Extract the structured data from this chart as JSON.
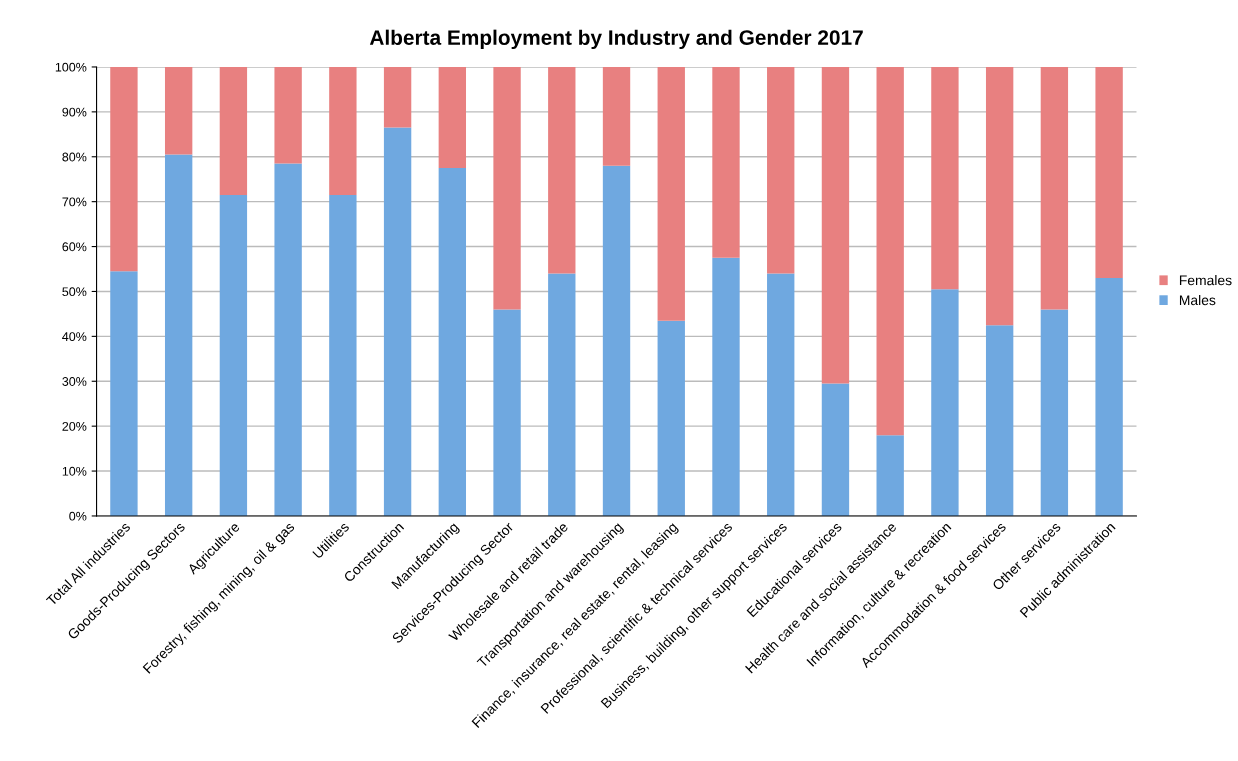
{
  "chart_data": {
    "type": "bar",
    "title": "Alberta Employment by Industry and Gender 2017",
    "categories": [
      "Total All industries",
      "Goods-Producing Sectors",
      "Agriculture",
      "Forestry, fishing, mining, oil & gas",
      "Utilities",
      "Construction",
      "Manufacturing",
      "Services-Producing Sector",
      "Wholesale and retail trade",
      "Transportation and warehousing",
      "Finance, insurance, real estate, rental, leasing",
      "Professional, scientific & technical services",
      "Business, building, other support services",
      "Educational services",
      "Health care and social assistance",
      "Information, culture & recreation",
      "Accommodation & food services",
      "Other services",
      "Public administration"
    ],
    "series": [
      {
        "name": "Males",
        "color": "#6fa8e0",
        "values": [
          54.5,
          80.5,
          71.5,
          78.5,
          71.5,
          86.5,
          77.5,
          46,
          54,
          78,
          43.5,
          57.5,
          54,
          29.5,
          18,
          50.5,
          42.5,
          46,
          53
        ]
      },
      {
        "name": "Females",
        "color": "#e88080",
        "values": [
          45.5,
          19.5,
          28.5,
          21.5,
          28.5,
          13.5,
          22.5,
          54,
          46,
          22,
          56.5,
          42.5,
          46,
          70.5,
          82,
          49.5,
          57.5,
          54,
          47
        ]
      }
    ],
    "stacked": true,
    "ylim": [
      0,
      100
    ],
    "yticks": [
      {
        "value": 0,
        "label": "0%"
      },
      {
        "value": 10,
        "label": "10%"
      },
      {
        "value": 20,
        "label": "20%"
      },
      {
        "value": 30,
        "label": "30%"
      },
      {
        "value": 40,
        "label": "40%"
      },
      {
        "value": 50,
        "label": "50%"
      },
      {
        "value": 60,
        "label": "60%"
      },
      {
        "value": 70,
        "label": "70%"
      },
      {
        "value": 80,
        "label": "80%"
      },
      {
        "value": 90,
        "label": "90%"
      },
      {
        "value": 100,
        "label": "100%"
      }
    ],
    "grid": "y",
    "legend": "right"
  }
}
